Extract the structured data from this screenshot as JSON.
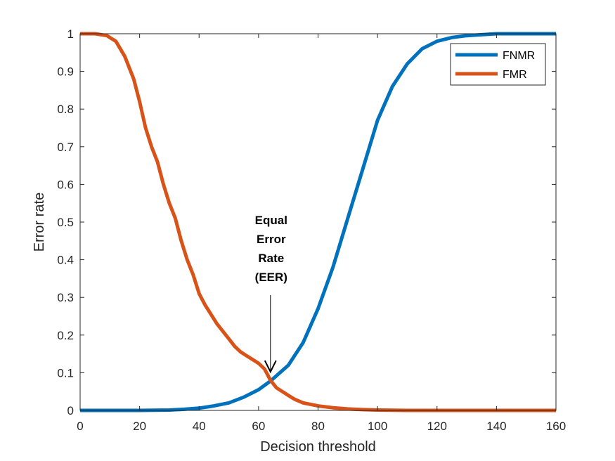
{
  "chart_data": {
    "type": "line",
    "title": "",
    "xlabel": "Decision threshold",
    "ylabel": "Error rate",
    "xlim": [
      0,
      160
    ],
    "ylim": [
      0,
      1
    ],
    "x_ticks": [
      0,
      20,
      40,
      60,
      80,
      100,
      120,
      140,
      160
    ],
    "y_ticks": [
      0,
      0.1,
      0.2,
      0.3,
      0.4,
      0.5,
      0.6,
      0.7,
      0.8,
      0.9,
      1
    ],
    "x_tick_labels": [
      "0",
      "20",
      "40",
      "60",
      "80",
      "100",
      "120",
      "140",
      "160"
    ],
    "y_tick_labels": [
      "0",
      "0.1",
      "0.2",
      "0.3",
      "0.4",
      "0.5",
      "0.6",
      "0.7",
      "0.8",
      "0.9",
      "1"
    ],
    "grid": false,
    "legend_position": "top-right",
    "series": [
      {
        "name": "FNMR",
        "color": "#0072BD",
        "x": [
          0,
          20,
          30,
          35,
          40,
          45,
          50,
          55,
          60,
          64,
          70,
          75,
          80,
          85,
          90,
          95,
          100,
          105,
          110,
          115,
          120,
          125,
          130,
          140,
          150,
          160
        ],
        "y": [
          0,
          0,
          0.001,
          0.003,
          0.006,
          0.012,
          0.02,
          0.035,
          0.055,
          0.078,
          0.12,
          0.18,
          0.27,
          0.38,
          0.51,
          0.64,
          0.77,
          0.86,
          0.92,
          0.96,
          0.98,
          0.99,
          0.995,
          1.0,
          1.0,
          1.0
        ]
      },
      {
        "name": "FMR",
        "color": "#D95319",
        "x": [
          0,
          5,
          9,
          12,
          15,
          18,
          20,
          22,
          24,
          26,
          28,
          30,
          32,
          34,
          36,
          38,
          40,
          42,
          44,
          46,
          48,
          50,
          52,
          54,
          56,
          58,
          60,
          62,
          64,
          66,
          68,
          70,
          72,
          75,
          80,
          85,
          90,
          95,
          100,
          110,
          120,
          140,
          160
        ],
        "y": [
          1.0,
          1.0,
          0.995,
          0.98,
          0.94,
          0.88,
          0.82,
          0.75,
          0.7,
          0.66,
          0.6,
          0.55,
          0.51,
          0.45,
          0.4,
          0.36,
          0.31,
          0.28,
          0.255,
          0.23,
          0.21,
          0.19,
          0.17,
          0.155,
          0.145,
          0.135,
          0.125,
          0.11,
          0.08,
          0.06,
          0.05,
          0.04,
          0.03,
          0.02,
          0.012,
          0.007,
          0.004,
          0.002,
          0.001,
          0,
          0,
          0,
          0
        ]
      }
    ],
    "annotation": {
      "lines": [
        "Equal",
        "Error",
        "Rate",
        "(EER)"
      ],
      "x": 64,
      "y": 0.08
    }
  }
}
